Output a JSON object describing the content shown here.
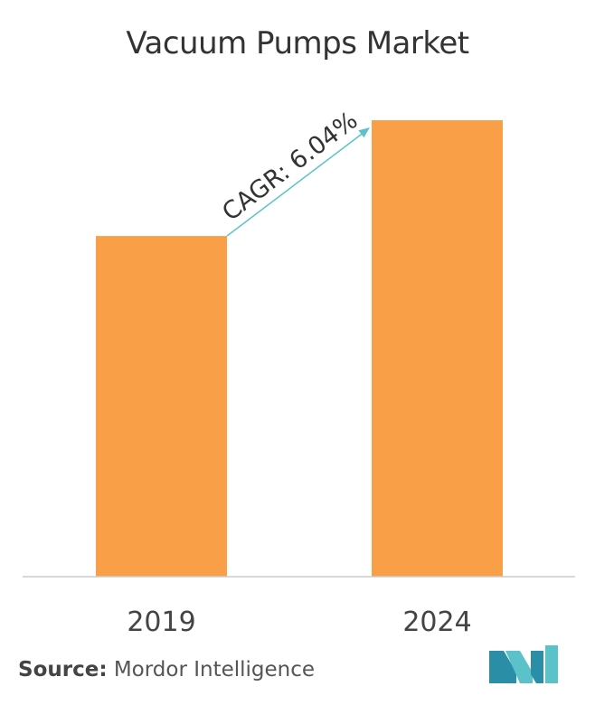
{
  "chart_data": {
    "type": "bar",
    "title": "Vacuum Pumps Market",
    "categories": [
      "2019",
      "2024"
    ],
    "values": [
      100,
      134
    ],
    "ylim": [
      0,
      134
    ],
    "xlabel": "",
    "ylabel": "",
    "grid": false,
    "annotation": "CAGR: 6.04%"
  },
  "colors": {
    "bar": "#F89F48",
    "axis": "#CCCCCC",
    "arrow": "#5BC2C9",
    "text": "#333333"
  },
  "source": {
    "label": "Source:",
    "value": "Mordor Intelligence"
  },
  "logo": {
    "icon": "mordor-intelligence-logo-icon"
  }
}
